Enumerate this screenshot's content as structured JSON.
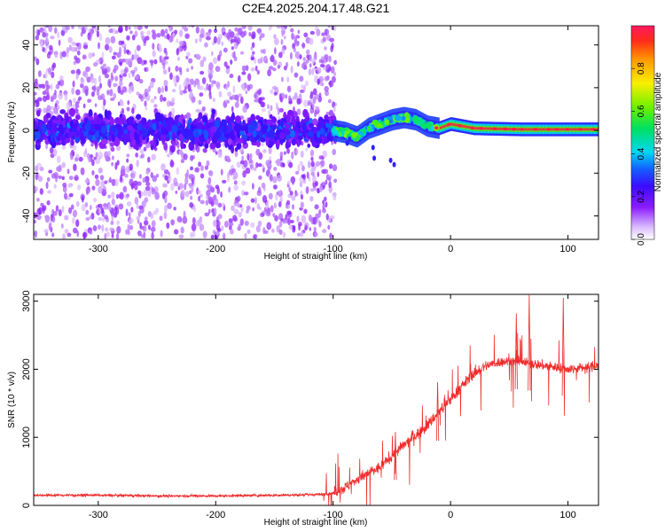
{
  "figure": {
    "title": "C2E4.2025.204.17.48.G21"
  },
  "chart_data": [
    {
      "type": "heatmap",
      "xlabel": "Height of straight line (km)",
      "ylabel": "Frequency (Hz)",
      "xlim": [
        -355,
        126
      ],
      "ylim": [
        -51,
        49
      ],
      "xticks": [
        -300,
        -200,
        -100,
        0,
        100
      ],
      "yticks": [
        -40,
        -20,
        0,
        20,
        40
      ],
      "colorbar": {
        "label": "Normalized spectral amplitude",
        "range": [
          0,
          1
        ],
        "ticks": [
          0.0,
          0.2,
          0.4,
          0.6,
          0.8
        ],
        "colormap": "rainbow: white-violet-purple-blue-cyan-green-yellow-orange-red"
      },
      "ridge": {
        "description_points_x_km": [
          -355,
          -100,
          -90,
          -80,
          -70,
          -60,
          -50,
          -40,
          -30,
          -20,
          -10,
          0,
          20,
          60,
          126
        ],
        "description_points_freq_hz": [
          0,
          0,
          -1,
          -3,
          1,
          3,
          5,
          6,
          5,
          2,
          1,
          3,
          1,
          0.5,
          0.5
        ]
      },
      "regions": [
        {
          "x_range": [
            -355,
            -100
          ],
          "note": "broadband noise, scattered spectral energy",
          "amplitude": 0.15
        },
        {
          "x_range": [
            -100,
            -10
          ],
          "note": "ridge emerging",
          "amplitude": 0.5
        },
        {
          "x_range": [
            -10,
            126
          ],
          "note": "stable ridge near 0 Hz",
          "amplitude": 0.95
        }
      ]
    },
    {
      "type": "line",
      "xlabel": "Height of straight line (km)",
      "ylabel": "SNR (10 * v/v)",
      "xlim": [
        -355,
        126
      ],
      "ylim": [
        0,
        3100
      ],
      "xticks": [
        -300,
        -200,
        -100,
        0,
        100
      ],
      "yticks": [
        0,
        1000,
        2000,
        3000
      ],
      "color": "#ef2b2b",
      "series": [
        {
          "x": [
            -355,
            -300,
            -250,
            -200,
            -150,
            -110,
            -100,
            -90,
            -80,
            -70,
            -60,
            -50,
            -40,
            -30,
            -20,
            -10,
            0,
            10,
            20,
            30,
            40,
            50,
            60,
            70,
            80,
            90,
            100,
            110,
            126
          ],
          "values": [
            150,
            150,
            140,
            140,
            150,
            160,
            180,
            260,
            380,
            470,
            560,
            730,
            880,
            1020,
            1170,
            1370,
            1560,
            1760,
            1940,
            2050,
            2100,
            2120,
            2100,
            2080,
            2050,
            2030,
            2000,
            2020,
            2050
          ]
        }
      ],
      "spikes": [
        {
          "x": -47,
          "y": 1080
        },
        {
          "x": -11,
          "y": 1810
        },
        {
          "x": 56,
          "y": 2820
        },
        {
          "x": 67,
          "y": 3090
        },
        {
          "x": 96,
          "y": 3050
        }
      ]
    }
  ]
}
